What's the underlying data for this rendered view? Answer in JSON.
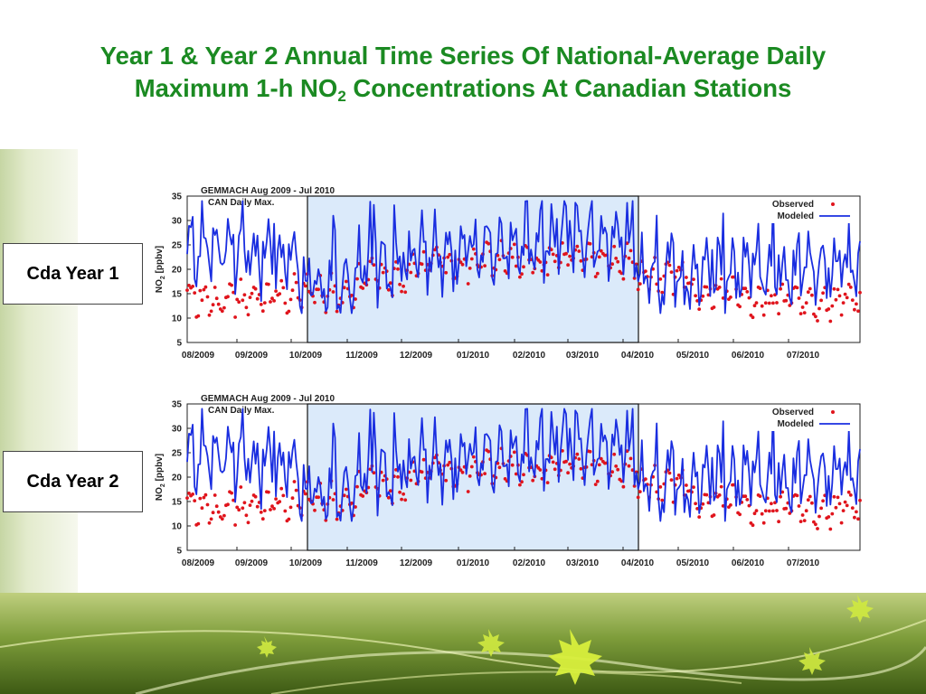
{
  "title": {
    "line1": "Year 1 & Year 2 Annual Time Series Of National-Average Daily",
    "line2_prefix": "Maximum 1-h NO",
    "line2_sub": "2",
    "line2_suffix": " Concentrations At Canadian Stations"
  },
  "labels": {
    "year1": "Cda Year 1",
    "year2": "Cda Year 2"
  },
  "colors": {
    "title": "#1b8a22",
    "observed": "#e0141c",
    "modeled": "#1a2ee0",
    "highlight": "#dbeafa"
  },
  "highlight_period": {
    "from": "10/2009",
    "to": "04/2010"
  },
  "chart_data": [
    {
      "type": "line",
      "panel": "Cda Year 1",
      "title": "GEMMACH Aug 2009 - Jul 2010",
      "subtitle": "CAN Daily Max.",
      "ylabel_main": "NO",
      "ylabel_sub": "2",
      "ylabel_suffix": " [ppbv]",
      "ylim": [
        5,
        35
      ],
      "yticks": [
        "35",
        "30",
        "25",
        "20",
        "15",
        "10",
        "5"
      ],
      "xticks": [
        "08/2009",
        "09/2009",
        "10/2009",
        "11/2009",
        "12/2009",
        "01/2010",
        "02/2010",
        "03/2010",
        "04/2010",
        "05/2010",
        "06/2010",
        "07/2010"
      ],
      "legend": [
        "Observed",
        "Modeled"
      ],
      "legend_position": "top-right",
      "modeled_monthly_mean": [
        24,
        23,
        17,
        20,
        23,
        24,
        25,
        26,
        18,
        19,
        20,
        21
      ],
      "observed_monthly_mean": [
        14,
        15,
        15,
        18,
        21,
        22,
        22,
        22,
        18,
        15,
        14,
        13
      ]
    },
    {
      "type": "line",
      "panel": "Cda Year 2",
      "title": "GEMMACH Aug 2009 - Jul 2010",
      "subtitle": "CAN Daily Max.",
      "ylabel_main": "NO",
      "ylabel_sub": "2",
      "ylabel_suffix": " [ppbv]",
      "ylim": [
        5,
        35
      ],
      "yticks": [
        "35",
        "30",
        "25",
        "20",
        "15",
        "10",
        "5"
      ],
      "xticks": [
        "08/2009",
        "09/2009",
        "10/2009",
        "11/2009",
        "12/2009",
        "01/2010",
        "02/2010",
        "03/2010",
        "04/2010",
        "05/2010",
        "06/2010",
        "07/2010"
      ],
      "legend": [
        "Observed",
        "Modeled"
      ],
      "legend_position": "top-right",
      "modeled_monthly_mean": [
        24,
        23,
        17,
        20,
        23,
        24,
        25,
        26,
        18,
        19,
        20,
        21
      ],
      "observed_monthly_mean": [
        14,
        15,
        15,
        18,
        21,
        22,
        22,
        22,
        18,
        15,
        14,
        13
      ]
    }
  ]
}
